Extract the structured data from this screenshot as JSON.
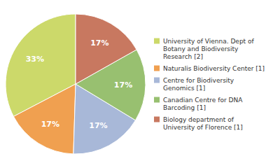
{
  "chart_data": {
    "type": "pie",
    "categories": [
      "University of Vienna. Dept of\nBotany and Biodiversity\nResearch [2]",
      "Naturalis Biodiversity Center [1]",
      "Centre for Biodiversity\nGenomics [1]",
      "Canadian Centre for DNA\nBarcoding [1]",
      "Biology department of\nUniversity of Florence [1]"
    ],
    "values": [
      33,
      17,
      17,
      17,
      17
    ],
    "value_labels": [
      "33%",
      "17%",
      "17%",
      "17%",
      "17%"
    ],
    "colors": [
      "#ccd96a",
      "#f0a050",
      "#a8b8d8",
      "#98c070",
      "#c87860"
    ],
    "data_labels": true,
    "legend": "right"
  }
}
